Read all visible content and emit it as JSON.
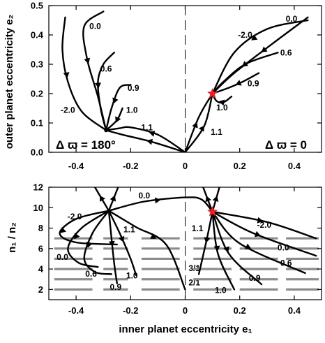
{
  "chart_data": [
    {
      "type": "line",
      "title": "",
      "xlabel": "",
      "ylabel": "outer planet eccentricity e₂",
      "xlim": [
        -0.5,
        0.5
      ],
      "ylim": [
        0,
        0.5
      ],
      "x_ticks": [
        -0.4,
        -0.2,
        0,
        0.2,
        0.4
      ],
      "y_ticks": [
        0,
        0.1,
        0.2,
        0.3,
        0.4,
        0.5
      ],
      "annotations": [
        "Δ ϖ = 180°",
        "Δ ϖ = 0"
      ],
      "fixed_points": [
        {
          "x": -0.29,
          "y": 0.075,
          "color": "#000000"
        },
        {
          "x": 0.1,
          "y": 0.2,
          "color": "#e8202a"
        }
      ],
      "series": [
        {
          "name": "-2.0",
          "label_at": [
            -0.43,
            0.135
          ],
          "points": [
            [
              -0.44,
              0.46
            ],
            [
              -0.45,
              0.35
            ],
            [
              -0.43,
              0.24
            ],
            [
              -0.38,
              0.14
            ],
            [
              -0.29,
              0.075
            ]
          ]
        },
        {
          "name": "0.0",
          "label_at": [
            -0.33,
            0.42
          ],
          "points": [
            [
              -0.3,
              0.48
            ],
            [
              -0.37,
              0.43
            ],
            [
              -0.36,
              0.32
            ],
            [
              -0.32,
              0.19
            ],
            [
              -0.29,
              0.075
            ]
          ]
        },
        {
          "name": "0.6",
          "label_at": [
            -0.29,
            0.275
          ],
          "points": [
            [
              -0.26,
              0.34
            ],
            [
              -0.3,
              0.3
            ],
            [
              -0.32,
              0.24
            ],
            [
              -0.31,
              0.15
            ],
            [
              -0.29,
              0.075
            ]
          ]
        },
        {
          "name": "0.9",
          "label_at": [
            -0.19,
            0.21
          ],
          "points": [
            [
              -0.2,
              0.23
            ],
            [
              -0.24,
              0.22
            ],
            [
              -0.27,
              0.15
            ],
            [
              -0.29,
              0.075
            ]
          ]
        },
        {
          "name": "1.0",
          "label_at": [
            -0.195,
            0.135
          ],
          "points": [
            [
              -0.23,
              0.15
            ],
            [
              -0.25,
              0.11
            ],
            [
              -0.29,
              0.075
            ]
          ]
        },
        {
          "name": "1.1",
          "label_at": [
            -0.14,
            0.075
          ],
          "points": [
            [
              0,
              0
            ],
            [
              -0.1,
              0.06
            ],
            [
              -0.2,
              0.085
            ],
            [
              -0.24,
              0.082
            ],
            [
              -0.29,
              0.075
            ]
          ]
        },
        {
          "name": "",
          "label_at": null,
          "points": [
            [
              0,
              0
            ],
            [
              -0.12,
              0.035
            ],
            [
              -0.23,
              0.06
            ],
            [
              -0.29,
              0.075
            ]
          ]
        },
        {
          "name": "-2.0",
          "label_at": [
            0.22,
            0.39
          ],
          "points": [
            [
              0.45,
              0.45
            ],
            [
              0.3,
              0.42
            ],
            [
              0.18,
              0.34
            ],
            [
              0.1,
              0.2
            ]
          ]
        },
        {
          "name": "0.0",
          "label_at": [
            0.39,
            0.445
          ],
          "points": [
            [
              0.45,
              0.46
            ],
            [
              0.32,
              0.37
            ],
            [
              0.18,
              0.27
            ],
            [
              0.1,
              0.2
            ]
          ]
        },
        {
          "name": "0.6",
          "label_at": [
            0.37,
            0.33
          ],
          "points": [
            [
              0.34,
              0.34
            ],
            [
              0.22,
              0.3
            ],
            [
              0.14,
              0.24
            ],
            [
              0.1,
              0.2
            ]
          ]
        },
        {
          "name": "0.9",
          "label_at": [
            0.25,
            0.225
          ],
          "points": [
            [
              0.27,
              0.27
            ],
            [
              0.21,
              0.24
            ],
            [
              0.16,
              0.22
            ],
            [
              0.1,
              0.2
            ]
          ]
        },
        {
          "name": "1.0",
          "label_at": [
            0.135,
            0.143
          ],
          "points": [
            [
              0.17,
              0.19
            ],
            [
              0.14,
              0.17
            ],
            [
              0.115,
              0.175
            ],
            [
              0.1,
              0.2
            ]
          ]
        },
        {
          "name": "1.1",
          "label_at": [
            0.115,
            0.06
          ],
          "points": [
            [
              0,
              0
            ],
            [
              0.07,
              0.09
            ],
            [
              0.1,
              0.2
            ]
          ]
        },
        {
          "name": "",
          "label_at": null,
          "points": [
            [
              0,
              0
            ],
            [
              0.05,
              0.12
            ],
            [
              0.1,
              0.2
            ]
          ]
        }
      ]
    },
    {
      "type": "line",
      "title": "",
      "xlabel": "inner planet eccentricity e₁",
      "ylabel": "n₁ / n₂",
      "xlim": [
        -0.5,
        0.5
      ],
      "ylim": [
        1,
        12
      ],
      "x_ticks": [
        -0.4,
        -0.2,
        0,
        0.2,
        0.4
      ],
      "y_ticks": [
        2,
        4,
        6,
        8,
        10,
        12
      ],
      "resonances": [
        {
          "label": "2/1",
          "value": 2,
          "label_at": [
            0.055,
            2.4
          ]
        },
        {
          "label": "3/1",
          "value": 3,
          "label_at": [
            0.055,
            3.8
          ]
        },
        {
          "value": 4
        },
        {
          "value": 5
        },
        {
          "value": 6
        },
        {
          "value": 7
        }
      ],
      "fixed_points": [
        {
          "x": -0.28,
          "y": 9.7,
          "color": "#000000"
        },
        {
          "x": 0.1,
          "y": 9.6,
          "color": "#e8202a"
        }
      ],
      "series": [
        {
          "name": "-2.0",
          "label_at": [
            -0.405,
            8.85
          ],
          "points": [
            [
              -0.28,
              9.7
            ],
            [
              -0.4,
              8.9
            ],
            [
              -0.46,
              7.5
            ],
            [
              -0.4,
              6.6
            ],
            [
              -0.25,
              6.4
            ]
          ]
        },
        {
          "name": "0.0",
          "label_at": [
            -0.45,
            4.9
          ],
          "points": [
            [
              -0.28,
              9.7
            ],
            [
              -0.38,
              8
            ],
            [
              -0.43,
              6
            ],
            [
              -0.39,
              4.6
            ],
            [
              -0.32,
              4.2
            ]
          ]
        },
        {
          "name": "0.6",
          "label_at": [
            -0.345,
            3.25
          ],
          "points": [
            [
              -0.28,
              9.7
            ],
            [
              -0.34,
              7.5
            ],
            [
              -0.37,
              5
            ],
            [
              -0.33,
              3.7
            ],
            [
              -0.27,
              3.5
            ]
          ]
        },
        {
          "name": "0.9",
          "label_at": [
            -0.255,
            1.95
          ],
          "points": [
            [
              -0.28,
              9.7
            ],
            [
              -0.27,
              7
            ],
            [
              -0.26,
              4.5
            ],
            [
              -0.25,
              2.6
            ]
          ]
        },
        {
          "name": "1.0",
          "label_at": [
            -0.195,
            3.1
          ],
          "points": [
            [
              -0.28,
              9.7
            ],
            [
              -0.24,
              7.5
            ],
            [
              -0.2,
              5
            ],
            [
              -0.18,
              3.4
            ]
          ]
        },
        {
          "name": "1.1",
          "label_at": [
            -0.205,
            7.6
          ],
          "points": [
            [
              -0.28,
              9.7
            ],
            [
              -0.18,
              8.1
            ],
            [
              -0.07,
              6.4
            ],
            [
              0,
              2
            ]
          ]
        },
        {
          "name": "0.0",
          "label_at": [
            -0.15,
            10.9
          ],
          "points": [
            [
              -0.28,
              9.7
            ],
            [
              -0.15,
              10.6
            ],
            [
              0,
              11
            ],
            [
              0.06,
              10.8
            ],
            [
              0.1,
              9.6
            ]
          ]
        },
        {
          "name": "",
          "label_at": null,
          "points": [
            [
              -0.28,
              9.7
            ],
            [
              -0.34,
              12.4
            ]
          ]
        },
        {
          "name": "",
          "label_at": null,
          "points": [
            [
              -0.28,
              9.7
            ],
            [
              -0.24,
              12.4
            ]
          ]
        },
        {
          "name": "-2.0",
          "label_at": [
            0.29,
            8.05
          ],
          "points": [
            [
              0.1,
              9.6
            ],
            [
              0.3,
              8.6
            ],
            [
              0.48,
              7
            ]
          ]
        },
        {
          "name": "0.0",
          "label_at": [
            0.36,
            5.8
          ],
          "points": [
            [
              0.1,
              9.6
            ],
            [
              0.25,
              7.5
            ],
            [
              0.48,
              5.3
            ]
          ]
        },
        {
          "name": "0.6",
          "label_at": [
            0.37,
            4.3
          ],
          "points": [
            [
              0.1,
              9.6
            ],
            [
              0.2,
              6.5
            ],
            [
              0.44,
              3.6
            ]
          ]
        },
        {
          "name": "0.9",
          "label_at": [
            0.255,
            2.85
          ],
          "points": [
            [
              0.1,
              9.6
            ],
            [
              0.16,
              5.5
            ],
            [
              0.28,
              2.5
            ]
          ]
        },
        {
          "name": "1.0",
          "label_at": [
            0.13,
            1.65
          ],
          "points": [
            [
              0.1,
              9.6
            ],
            [
              0.12,
              5.5
            ],
            [
              0.18,
              2
            ]
          ]
        },
        {
          "name": "1.1",
          "label_at": [
            0.045,
            7.7
          ],
          "points": [
            [
              0.1,
              9.6
            ],
            [
              0.08,
              7
            ],
            [
              0.05,
              3.5
            ]
          ]
        },
        {
          "name": "",
          "label_at": null,
          "points": [
            [
              0.1,
              9.6
            ],
            [
              0.06,
              12.4
            ]
          ]
        },
        {
          "name": "",
          "label_at": null,
          "points": [
            [
              0.1,
              9.6
            ],
            [
              0.13,
              12.4
            ]
          ]
        }
      ]
    }
  ],
  "colors": {
    "trajectory": "#000000",
    "resonance_lines": "#8c8c8c",
    "red_star": "#e8202a"
  }
}
